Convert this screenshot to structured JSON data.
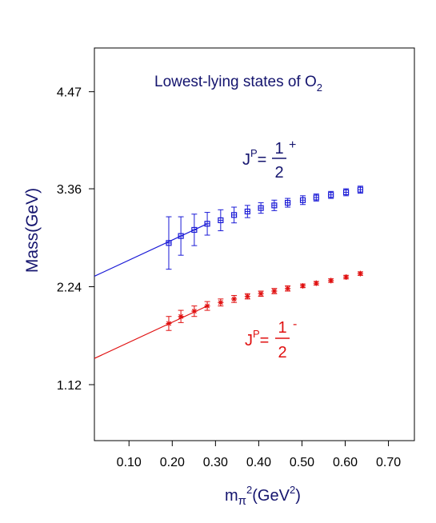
{
  "chart_data": {
    "type": "scatter",
    "title": "Lowest-lying states of  O",
    "title_subscript": "2",
    "xlabel": {
      "base": "m",
      "pi": "π",
      "power": "2",
      "unit_open": "(GeV",
      "unit_power": "2",
      "unit_close": ")"
    },
    "ylabel": "Mass(GeV)",
    "xlim": [
      0.02,
      0.76
    ],
    "ylim": [
      0.48,
      4.97
    ],
    "x_ticks": [
      0.1,
      0.2,
      0.3,
      0.4,
      0.5,
      0.6,
      0.7
    ],
    "x_tick_labels": [
      "0.10",
      "0.20",
      "0.30",
      "0.40",
      "0.50",
      "0.60",
      "0.70"
    ],
    "y_ticks": [
      1.12,
      2.24,
      3.36,
      4.47
    ],
    "y_tick_labels": [
      "1.12",
      "2.24",
      "3.36",
      "4.47"
    ],
    "grid": false,
    "series": [
      {
        "label_prefix": "J",
        "label_sup": "P",
        "label_eq": "=",
        "label_num": "1",
        "label_den": "2",
        "label_parity": "+",
        "color": "#1a1ad6",
        "marker": "square",
        "x": [
          0.192,
          0.22,
          0.251,
          0.281,
          0.312,
          0.343,
          0.374,
          0.405,
          0.436,
          0.467,
          0.502,
          0.533,
          0.567,
          0.602,
          0.635
        ],
        "y": [
          2.74,
          2.82,
          2.89,
          2.96,
          3.0,
          3.06,
          3.1,
          3.14,
          3.17,
          3.2,
          3.23,
          3.26,
          3.29,
          3.32,
          3.35
        ],
        "err": [
          0.3,
          0.22,
          0.18,
          0.13,
          0.12,
          0.09,
          0.07,
          0.06,
          0.06,
          0.05,
          0.05,
          0.04,
          0.04,
          0.04,
          0.04
        ],
        "fit": {
          "x": [
            0.02,
            0.281
          ],
          "y": [
            2.36,
            2.96
          ]
        }
      },
      {
        "label_prefix": "J",
        "label_sup": "P",
        "label_eq": "=",
        "label_num": "1",
        "label_den": "2",
        "label_parity": "-",
        "color": "#e01010",
        "marker": "star",
        "x": [
          0.192,
          0.22,
          0.251,
          0.281,
          0.312,
          0.343,
          0.374,
          0.405,
          0.436,
          0.467,
          0.502,
          0.533,
          0.567,
          0.602,
          0.635
        ],
        "y": [
          1.82,
          1.9,
          1.96,
          2.02,
          2.06,
          2.1,
          2.13,
          2.16,
          2.19,
          2.22,
          2.25,
          2.28,
          2.31,
          2.35,
          2.39
        ],
        "err": [
          0.08,
          0.07,
          0.06,
          0.05,
          0.04,
          0.04,
          0.03,
          0.03,
          0.03,
          0.03,
          0.02,
          0.02,
          0.02,
          0.02,
          0.02
        ],
        "fit": {
          "x": [
            0.02,
            0.281
          ],
          "y": [
            1.42,
            2.02
          ]
        }
      }
    ]
  }
}
